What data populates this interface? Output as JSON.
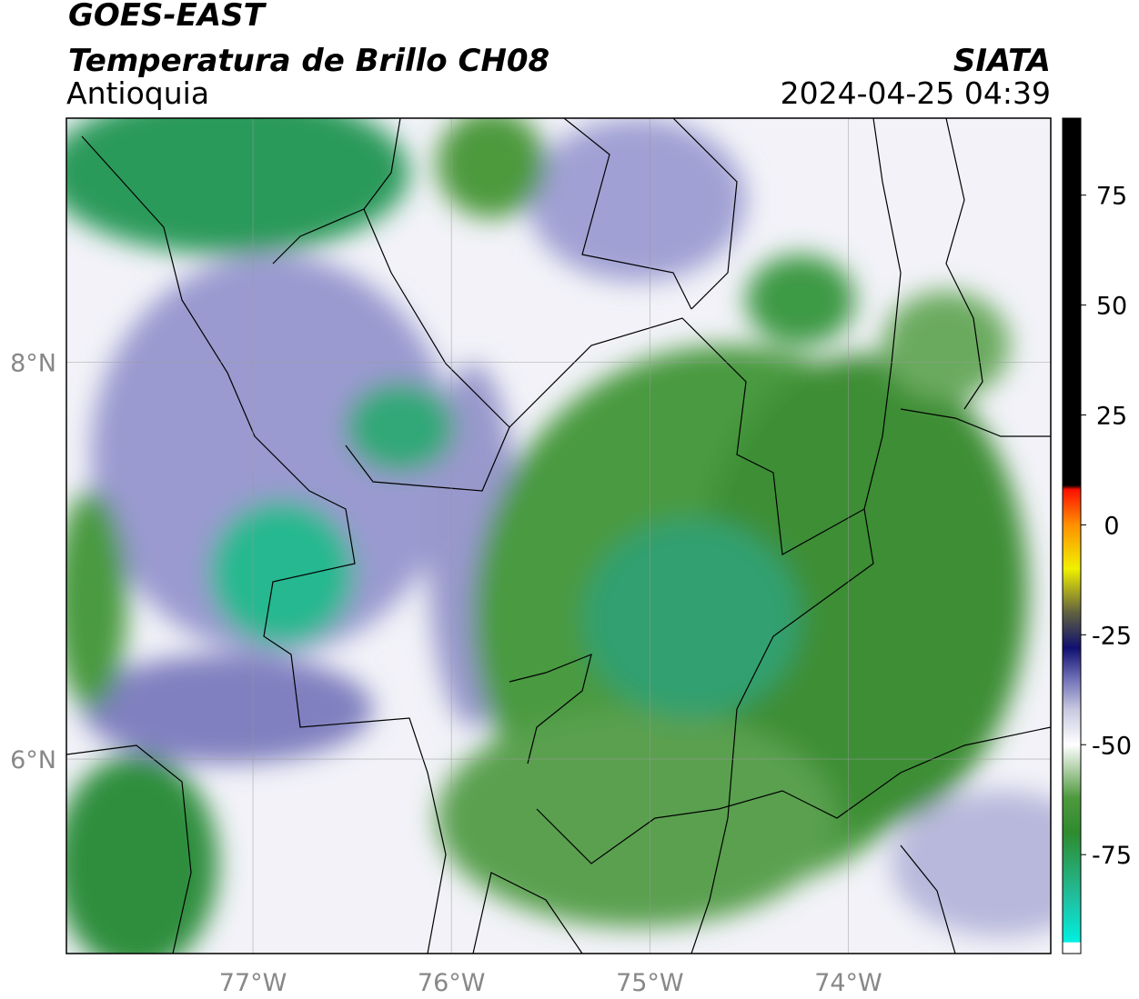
{
  "header": {
    "title": "GOES-EAST",
    "subtitle": "Temperatura de Brillo CH08",
    "region": "Antioquia",
    "source": "SIATA",
    "datetime": "2024-04-25 04:39"
  },
  "map": {
    "xlim": [
      -77.94,
      -72.98
    ],
    "ylim": [
      5.02,
      9.23
    ],
    "xticks": [
      {
        "value": -77,
        "label": "77°W"
      },
      {
        "value": -76,
        "label": "76°W"
      },
      {
        "value": -75,
        "label": "75°W"
      },
      {
        "value": -74,
        "label": "74°W"
      }
    ],
    "yticks": [
      {
        "value": 6,
        "label": "6°N"
      },
      {
        "value": 8,
        "label": "8°N"
      }
    ],
    "grid": true
  },
  "colorbar": {
    "lim": [
      -97.5,
      92.5
    ],
    "ticks": [
      75,
      50,
      25,
      0,
      -25,
      -50,
      -75
    ],
    "stops": [
      {
        "value": -97.5,
        "color": "#ffffff"
      },
      {
        "value": -95,
        "color": "#ffffff"
      },
      {
        "value": -94.9,
        "color": "#00f0e0"
      },
      {
        "value": -85,
        "color": "#20c0a0"
      },
      {
        "value": -70,
        "color": "#2e8b2e"
      },
      {
        "value": -62,
        "color": "#4e9a3e"
      },
      {
        "value": -55,
        "color": "#b8d4b0"
      },
      {
        "value": -50,
        "color": "#ffffff"
      },
      {
        "value": -42,
        "color": "#c8c8e0"
      },
      {
        "value": -35,
        "color": "#7070b8"
      },
      {
        "value": -28,
        "color": "#101070"
      },
      {
        "value": -20,
        "color": "#606040"
      },
      {
        "value": -10,
        "color": "#f0f000"
      },
      {
        "value": 0,
        "color": "#ff9000"
      },
      {
        "value": 8,
        "color": "#ff1000"
      },
      {
        "value": 9,
        "color": "#000000"
      },
      {
        "value": 92.5,
        "color": "#000000"
      }
    ]
  }
}
